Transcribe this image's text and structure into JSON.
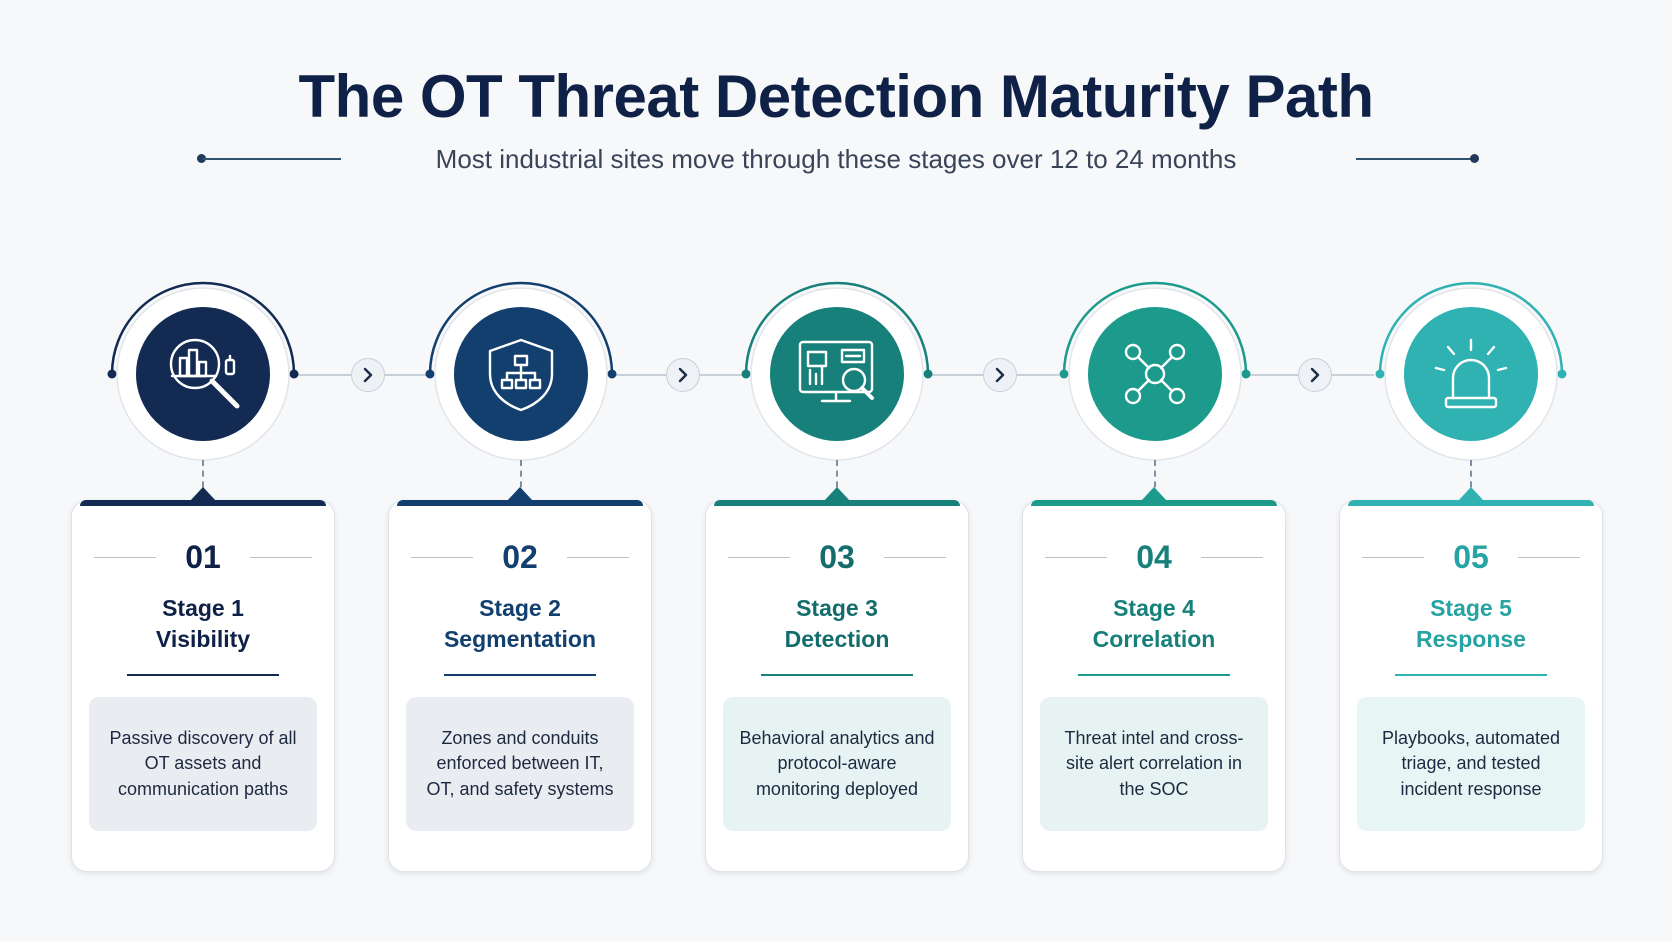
{
  "title": "The OT Threat Detection Maturity Path",
  "subtitle": "Most industrial sites move through these stages over 12 to 24 months",
  "stages": [
    {
      "num": "01",
      "label": "Stage 1",
      "name": "Visibility",
      "desc": "Passive discovery of all OT assets and communication paths",
      "color": "#132b52",
      "text_color": "#0f2146",
      "box_bg": "#e9ecf1",
      "icon": "asset-discovery-magnifier-icon"
    },
    {
      "num": "02",
      "label": "Stage 2",
      "name": "Segmentation",
      "desc": "Zones and conduits enforced between IT, OT, and safety systems",
      "color": "#123f6e",
      "text_color": "#123f6e",
      "box_bg": "#e9ecf1",
      "icon": "shield-network-icon"
    },
    {
      "num": "03",
      "label": "Stage 3",
      "name": "Detection",
      "desc": "Behavioral analytics and protocol-aware monitoring deployed",
      "color": "#17807a",
      "text_color": "#146d6c",
      "box_bg": "#e6f3f2",
      "icon": "monitor-analytics-icon"
    },
    {
      "num": "04",
      "label": "Stage 4",
      "name": "Correlation",
      "desc": "Threat intel and cross-site alert correlation in the SOC",
      "color": "#1c9b8c",
      "text_color": "#17807a",
      "box_bg": "#e6f3f2",
      "icon": "network-nodes-icon"
    },
    {
      "num": "05",
      "label": "Stage 5",
      "name": "Response",
      "desc": "Playbooks, automated triage, and tested incident response",
      "color": "#2fb2b1",
      "text_color": "#26a3a2",
      "box_bg": "#e8f5f5",
      "icon": "alarm-siren-icon"
    }
  ]
}
